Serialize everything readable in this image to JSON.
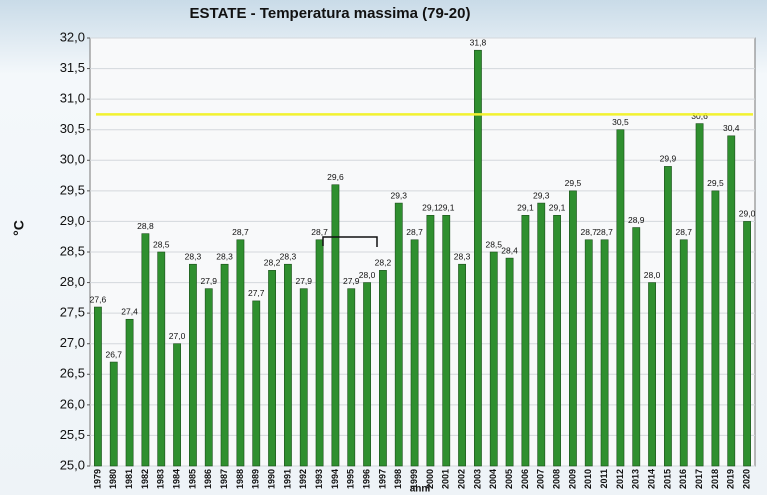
{
  "chart_data": {
    "type": "bar",
    "title": "ESTATE - Temperatura massima (79-20)",
    "x_label": "anni",
    "y_label": "°C",
    "categories": [
      "1979",
      "1980",
      "1981",
      "1982",
      "1983",
      "1984",
      "1985",
      "1986",
      "1987",
      "1988",
      "1989",
      "1990",
      "1991",
      "1992",
      "1993",
      "1994",
      "1995",
      "1996",
      "1997",
      "1998",
      "1999",
      "2000",
      "2001",
      "2002",
      "2003",
      "2004",
      "2005",
      "2006",
      "2007",
      "2008",
      "2009",
      "2010",
      "2011",
      "2012",
      "2013",
      "2014",
      "2015",
      "2016",
      "2017",
      "2018",
      "2019",
      "2020"
    ],
    "values": [
      27.6,
      26.7,
      27.4,
      28.8,
      28.5,
      27.0,
      28.3,
      27.9,
      28.3,
      28.7,
      27.7,
      28.2,
      28.3,
      27.9,
      28.7,
      29.6,
      27.9,
      28.0,
      28.2,
      29.3,
      28.7,
      29.1,
      29.1,
      28.3,
      31.8,
      28.5,
      28.4,
      29.1,
      29.3,
      29.1,
      29.5,
      28.7,
      28.7,
      30.5,
      28.9,
      28.0,
      29.9,
      28.7,
      30.6,
      29.5,
      30.4,
      29.0
    ],
    "value_labels": [
      "27,6",
      "26,7",
      "27,4",
      "28,8",
      "28,5",
      "27,0",
      "28,3",
      "27,9",
      "28,3",
      "28,7",
      "27,7",
      "28,2",
      "28,3",
      "27,9",
      "28,7",
      "29,6",
      "27,9",
      "28,0",
      "28,2",
      "29,3",
      "28,7",
      "29,1",
      "29,1",
      "28,3",
      "31,8",
      "28,5",
      "28,4",
      "29,1",
      "29,3",
      "29,1",
      "29,5",
      "28,7",
      "28,7",
      "30,5",
      "28,9",
      "28,0",
      "29,9",
      "28,7",
      "30,6",
      "29,5",
      "30,4",
      "29,0"
    ],
    "color": "#2f8f2f",
    "ylim": [
      25,
      32
    ],
    "yticks": [
      {
        "value": 25,
        "label": "25,0"
      },
      {
        "value": 25.5,
        "label": "25,5"
      },
      {
        "value": 26,
        "label": "26,0"
      },
      {
        "value": 26.5,
        "label": "26,5"
      },
      {
        "value": 27,
        "label": "27,0"
      },
      {
        "value": 27.5,
        "label": "27,5"
      },
      {
        "value": 28,
        "label": "28,0"
      },
      {
        "value": 28.5,
        "label": "28,5"
      },
      {
        "value": 29,
        "label": "29,0"
      },
      {
        "value": 29.5,
        "label": "29,5"
      },
      {
        "value": 30,
        "label": "30,0"
      },
      {
        "value": 30.5,
        "label": "30,5"
      },
      {
        "value": 31,
        "label": "31,0"
      },
      {
        "value": 31.5,
        "label": "31,5"
      },
      {
        "value": 32,
        "label": "32,0"
      }
    ],
    "grid": true,
    "reference_line": {
      "value": 30.75,
      "color": "#f2f230"
    }
  }
}
